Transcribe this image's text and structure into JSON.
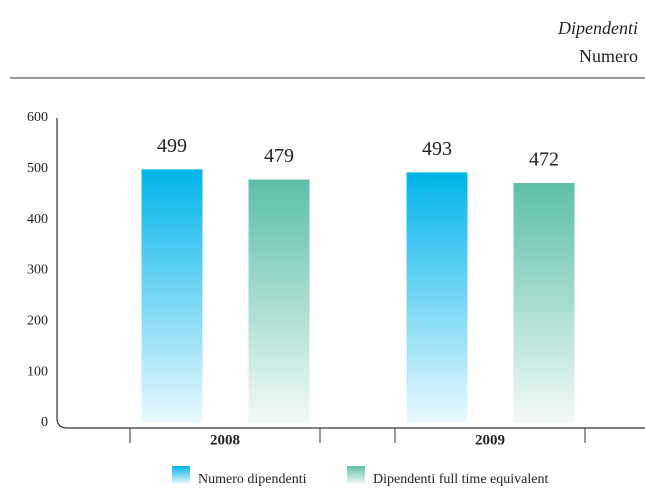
{
  "chart_data": {
    "type": "bar",
    "title": "Dipendenti",
    "subtitle": "Numero",
    "categories": [
      "2008",
      "2009"
    ],
    "series": [
      {
        "name": "Numero dipendenti",
        "color": "#00b4ea",
        "values": [
          499,
          493
        ]
      },
      {
        "name": "Dipendenti full time equivalent",
        "color": "#5cbfa9",
        "values": [
          479,
          472
        ]
      }
    ],
    "ylim": [
      0,
      600
    ],
    "yticks": [
      0,
      100,
      200,
      300,
      400,
      500,
      600
    ],
    "grid": false,
    "legend": "bottom"
  }
}
